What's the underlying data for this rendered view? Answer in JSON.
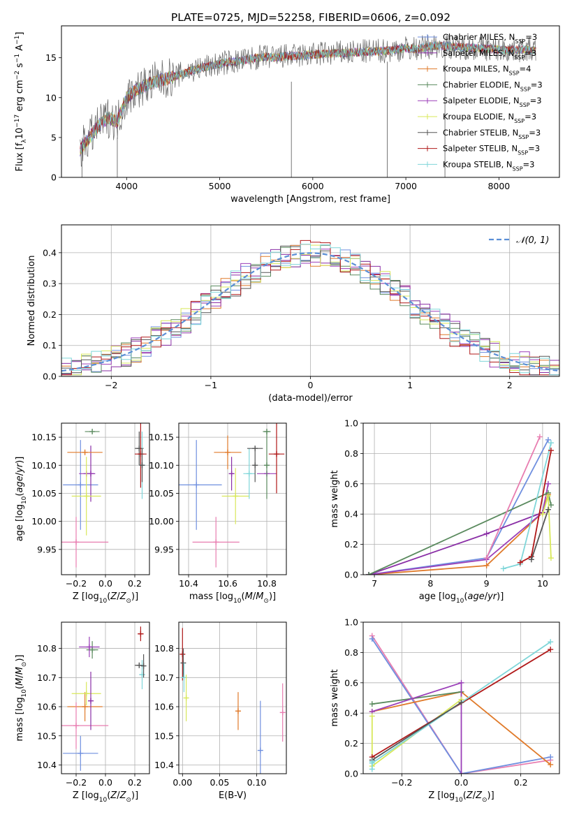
{
  "title": "PLATE=0725, MJD=52258, FIBERID=0606, z=0.092",
  "models": [
    {
      "name": "Chabrier MILES",
      "n": "3",
      "color": "#6f8fdf"
    },
    {
      "name": "Salpeter MILES",
      "n": "3",
      "color": "#8a2fa6"
    },
    {
      "name": "Kroupa MILES",
      "n": "4",
      "color": "#e07a2a"
    },
    {
      "name": "Chabrier ELODIE",
      "n": "3",
      "color": "#5a8a5e"
    },
    {
      "name": "Salpeter ELODIE",
      "n": "3",
      "color": "#9b3fb8"
    },
    {
      "name": "Kroupa ELODIE",
      "n": "3",
      "color": "#d8e85a"
    },
    {
      "name": "Chabrier STELIB",
      "n": "3",
      "color": "#555555"
    },
    {
      "name": "Salpeter STELIB",
      "n": "3",
      "color": "#b01818"
    },
    {
      "name": "Kroupa STELIB",
      "n": "3",
      "color": "#7fd6d9"
    }
  ],
  "chart_data": [
    {
      "id": "spectrum",
      "type": "line",
      "xlabel": "wavelength [Angstrom, rest frame]",
      "ylabel_html": "Flux [f<tspan baseline-shift='sub' font-size='9'>λ</tspan>10<tspan baseline-shift='super' font-size='9'>−17</tspan> erg cm<tspan baseline-shift='super' font-size='9'>−2</tspan> s<tspan baseline-shift='super' font-size='9'>−1</tspan> A<tspan baseline-shift='super' font-size='9'>−1</tspan>]",
      "xlim": [
        3300,
        8650
      ],
      "ylim": [
        0,
        19
      ],
      "xticks": [
        4000,
        5000,
        6000,
        7000,
        8000
      ],
      "yticks": [
        0,
        5,
        10,
        15
      ],
      "grid": false,
      "legend": "right",
      "x": [
        3500,
        3600,
        3700,
        3800,
        3900,
        4000,
        4100,
        4200,
        4300,
        4400,
        4500,
        4600,
        4700,
        4800,
        4900,
        5000,
        5100,
        5200,
        5300,
        5400,
        5500,
        5600,
        5700,
        5800,
        5900,
        6000,
        6100,
        6200,
        6300,
        6400,
        6500,
        6600,
        6700,
        6800,
        6900,
        7000,
        7100,
        7200,
        7300,
        7400,
        7500,
        7600,
        7700,
        7800,
        7900,
        8000,
        8100,
        8200,
        8300,
        8400
      ],
      "y": [
        3.5,
        5.0,
        6.5,
        7.5,
        7.0,
        10.0,
        11.0,
        11.5,
        12.0,
        12.3,
        12.6,
        13.0,
        13.4,
        13.7,
        14.0,
        14.2,
        14.5,
        14.5,
        14.8,
        15.0,
        15.1,
        15.0,
        15.2,
        15.2,
        15.3,
        15.4,
        15.5,
        15.5,
        15.6,
        15.6,
        15.7,
        15.8,
        15.8,
        15.9,
        16.0,
        16.2,
        16.1,
        16.3,
        16.5,
        16.5,
        16.4,
        16.3,
        16.3,
        16.2,
        16.1,
        16.0,
        16.0,
        16.0,
        16.0,
        15.9
      ]
    },
    {
      "id": "residuals",
      "type": "line",
      "xlabel": "(data-model)/error",
      "ylabel": "Normed distribution",
      "xlim": [
        -2.5,
        2.5
      ],
      "ylim": [
        0,
        0.49
      ],
      "xticks": [
        -2,
        -1,
        0,
        1,
        2
      ],
      "yticks": [
        0.0,
        0.1,
        0.2,
        0.3,
        0.4
      ],
      "grid": true,
      "legend": "top-right",
      "legend_label": "𝒩(0, 1)"
    },
    {
      "id": "age_vs_Z",
      "type": "scatter",
      "xlabel_html": "Z [log<tspan baseline-shift='sub' font-size='9'>10</tspan>(<tspan font-style='italic'>Z</tspan>/<tspan font-style='italic'>Z</tspan><tspan baseline-shift='sub' font-size='9'>⊙</tspan>)]",
      "ylabel_html": "age  [log<tspan baseline-shift='sub' font-size='9'>10</tspan>(<tspan font-style='italic'>age</tspan>/<tspan font-style='italic'>yr</tspan>)]",
      "xlim": [
        -0.3,
        0.3
      ],
      "ylim": [
        9.905,
        10.175
      ],
      "xticks": [
        -0.2,
        0.0,
        0.2
      ],
      "yticks": [
        9.95,
        10.0,
        10.05,
        10.1,
        10.15
      ],
      "grid": true,
      "points": [
        {
          "m": 0,
          "x": -0.17,
          "xe": 0.12,
          "y": 10.065,
          "ye": 0.08
        },
        {
          "m": 1,
          "x": -0.1,
          "xe": 0.03,
          "y": 10.085,
          "ye": 0.05
        },
        {
          "m": 2,
          "x": -0.14,
          "xe": 0.12,
          "y": 10.123,
          "ye": 0.0
        },
        {
          "m": 3,
          "x": -0.09,
          "xe": 0.05,
          "y": 10.16,
          "ye": 0.0
        },
        {
          "m": 4,
          "x": -0.13,
          "xe": 0.05,
          "y": 10.085,
          "ye": 0.0
        },
        {
          "m": 5,
          "x": -0.13,
          "xe": 0.1,
          "y": 10.045,
          "ye": 0.07
        },
        {
          "m": 6,
          "x": 0.23,
          "xe": 0.03,
          "y": 10.13,
          "ye": 0.03
        },
        {
          "m": 7,
          "x": 0.24,
          "xe": 0.04,
          "y": 10.12,
          "ye": 0.06
        },
        {
          "m": 8,
          "x": 0.25,
          "xe": 0.02,
          "y": 10.1,
          "ye": 0.06
        },
        {
          "m": 6,
          "x": 0.25,
          "xe": 0.0,
          "y": 10.1,
          "ye": 0.03
        },
        {
          "m": 9,
          "x": -0.2,
          "xe": 0.22,
          "y": 9.963,
          "ye": 0.045
        }
      ]
    },
    {
      "id": "age_vs_mass",
      "type": "scatter",
      "xlabel_html": "mass [log<tspan baseline-shift='sub' font-size='9'>10</tspan>(<tspan font-style='italic'>M</tspan>/<tspan font-style='italic'>M</tspan><tspan baseline-shift='sub' font-size='9'>⊙</tspan>)]",
      "xlim": [
        10.35,
        10.9
      ],
      "ylim": [
        9.905,
        10.175
      ],
      "xticks": [
        10.4,
        10.6,
        10.8
      ],
      "yticks": [
        9.95,
        10.0,
        10.05,
        10.1,
        10.15
      ],
      "grid": true,
      "points": [
        {
          "m": 0,
          "x": 10.44,
          "xe": 0.13,
          "y": 10.065,
          "ye": 0.08
        },
        {
          "m": 2,
          "x": 10.6,
          "xe": 0.07,
          "y": 10.123,
          "ye": 0.03
        },
        {
          "m": 1,
          "x": 10.62,
          "xe": 0.0,
          "y": 10.085,
          "ye": 0.03
        },
        {
          "m": 5,
          "x": 10.64,
          "xe": 0.07,
          "y": 10.045,
          "ye": 0.05
        },
        {
          "m": 8,
          "x": 10.71,
          "xe": 0.03,
          "y": 10.085,
          "ye": 0.045
        },
        {
          "m": 6,
          "x": 10.74,
          "xe": 0.04,
          "y": 10.13,
          "ye": 0.0
        },
        {
          "m": 6,
          "x": 10.74,
          "xe": 0.0,
          "y": 10.1,
          "ye": 0.03
        },
        {
          "m": 3,
          "x": 10.8,
          "xe": 0.02,
          "y": 10.16,
          "ye": 0.0
        },
        {
          "m": 4,
          "x": 10.8,
          "xe": 0.05,
          "y": 10.085,
          "ye": 0.0
        },
        {
          "m": 3,
          "x": 10.8,
          "xe": 0.0,
          "y": 10.1,
          "ye": 0.06
        },
        {
          "m": 7,
          "x": 10.85,
          "xe": 0.04,
          "y": 10.12,
          "ye": 0.07
        },
        {
          "m": 9,
          "x": 10.54,
          "xe": 0.12,
          "y": 9.963,
          "ye": 0.045
        }
      ]
    },
    {
      "id": "weight_vs_age",
      "type": "line",
      "xlabel_html": "age  [log<tspan baseline-shift='sub' font-size='9'>10</tspan>(<tspan font-style='italic'>age</tspan>/<tspan font-style='italic'>yr</tspan>)]",
      "ylabel": "mass weight",
      "xlim": [
        6.8,
        10.3
      ],
      "ylim": [
        0,
        1
      ],
      "xticks": [
        7,
        8,
        9,
        10
      ],
      "yticks": [
        0.0,
        0.2,
        0.4,
        0.6,
        0.8,
        1.0
      ],
      "grid": true,
      "series": [
        {
          "m": 0,
          "x": [
            6.9,
            9.0,
            10.1
          ],
          "y": [
            0.0,
            0.11,
            0.89
          ]
        },
        {
          "m": 2,
          "x": [
            6.9,
            9.0,
            10.0,
            10.1
          ],
          "y": [
            0.0,
            0.06,
            0.41,
            0.53
          ]
        },
        {
          "m": 4,
          "x": [
            6.9,
            9.0,
            10.0,
            10.1
          ],
          "y": [
            0.0,
            0.1,
            0.41,
            0.6
          ]
        },
        {
          "m": 1,
          "x": [
            6.9,
            9.0,
            10.0
          ],
          "y": [
            0.0,
            0.27,
            0.41
          ]
        },
        {
          "m": 3,
          "x": [
            6.9,
            10.1,
            10.15
          ],
          "y": [
            0.0,
            0.54,
            0.46
          ]
        },
        {
          "m": 9,
          "x": [
            9.0,
            9.95
          ],
          "y": [
            0.11,
            0.91
          ]
        },
        {
          "m": 8,
          "x": [
            9.3,
            9.6,
            10.15
          ],
          "y": [
            0.04,
            0.07,
            0.87
          ]
        },
        {
          "m": 7,
          "x": [
            9.6,
            9.8,
            10.15
          ],
          "y": [
            0.08,
            0.12,
            0.82
          ]
        },
        {
          "m": 5,
          "x": [
            10.0,
            10.1,
            10.15
          ],
          "y": [
            0.4,
            0.52,
            0.11
          ]
        },
        {
          "m": 6,
          "x": [
            9.8,
            10.1
          ],
          "y": [
            0.1,
            0.43
          ]
        }
      ]
    },
    {
      "id": "mass_vs_Z",
      "type": "scatter",
      "xlabel_html": "Z [log<tspan baseline-shift='sub' font-size='9'>10</tspan>(<tspan font-style='italic'>Z</tspan>/<tspan font-style='italic'>Z</tspan><tspan baseline-shift='sub' font-size='9'>⊙</tspan>)]",
      "ylabel_html": "mass [log<tspan baseline-shift='sub' font-size='9'>10</tspan>(<tspan font-style='italic'>M</tspan>/<tspan font-style='italic'>M</tspan><tspan baseline-shift='sub' font-size='9'>⊙</tspan>)]",
      "xlim": [
        -0.3,
        0.3
      ],
      "ylim": [
        10.37,
        10.89
      ],
      "xticks": [
        -0.2,
        0.0,
        0.2
      ],
      "yticks": [
        10.4,
        10.5,
        10.6,
        10.7,
        10.8
      ],
      "grid": true,
      "points": [
        {
          "m": 0,
          "x": -0.17,
          "xe": 0.12,
          "y": 10.44,
          "ye": 0.06
        },
        {
          "m": 2,
          "x": -0.14,
          "xe": 0.12,
          "y": 10.6,
          "ye": 0.05
        },
        {
          "m": 9,
          "x": -0.2,
          "xe": 0.22,
          "y": 10.535,
          "ye": 0.08
        },
        {
          "m": 5,
          "x": -0.13,
          "xe": 0.1,
          "y": 10.645,
          "ye": 0.04
        },
        {
          "m": 1,
          "x": -0.1,
          "xe": 0.0,
          "y": 10.62,
          "ye": 0.1
        },
        {
          "m": 3,
          "x": -0.09,
          "xe": 0.04,
          "y": 10.795,
          "ye": 0.03
        },
        {
          "m": 4,
          "x": -0.11,
          "xe": 0.07,
          "y": 10.805,
          "ye": 0.035
        },
        {
          "m": 7,
          "x": 0.24,
          "xe": 0.02,
          "y": 10.85,
          "ye": 0.025
        },
        {
          "m": 6,
          "x": 0.23,
          "xe": 0.03,
          "y": 10.742,
          "ye": 0.0
        },
        {
          "m": 8,
          "x": 0.25,
          "xe": 0.02,
          "y": 10.71,
          "ye": 0.05
        },
        {
          "m": 6,
          "x": 0.26,
          "xe": 0.0,
          "y": 10.74,
          "ye": 0.04
        }
      ]
    },
    {
      "id": "mass_vs_ebv",
      "type": "scatter",
      "xlabel": "E(B-V)",
      "xlim": [
        -0.005,
        0.14
      ],
      "ylim": [
        10.37,
        10.89
      ],
      "xticks": [
        0.0,
        0.05,
        0.1
      ],
      "xticklabels": [
        "0.00",
        "0.05",
        "0.10"
      ],
      "yticks": [
        10.4,
        10.5,
        10.6,
        10.7,
        10.8
      ],
      "grid": true,
      "points": [
        {
          "m": 7,
          "x": 0.0,
          "xe": 0.0,
          "y": 10.78,
          "ye": 0.09
        },
        {
          "m": 6,
          "x": 0.001,
          "xe": 0.0,
          "y": 10.75,
          "ye": 0.05
        },
        {
          "m": 8,
          "x": 0.002,
          "xe": 0.0,
          "y": 10.7,
          "ye": 0.05
        },
        {
          "m": 5,
          "x": 0.005,
          "xe": 0.0,
          "y": 10.63,
          "ye": 0.08
        },
        {
          "m": 2,
          "x": 0.075,
          "xe": 0.0,
          "y": 10.585,
          "ye": 0.065
        },
        {
          "m": 0,
          "x": 0.105,
          "xe": 0.0,
          "y": 10.45,
          "ye": 0.17
        },
        {
          "m": 9,
          "x": 0.135,
          "xe": 0.0,
          "y": 10.58,
          "ye": 0.1
        }
      ]
    },
    {
      "id": "weight_vs_Z",
      "type": "line",
      "xlabel_html": "Z [log<tspan baseline-shift='sub' font-size='9'>10</tspan>(<tspan font-style='italic'>Z</tspan>/<tspan font-style='italic'>Z</tspan><tspan baseline-shift='sub' font-size='9'>⊙</tspan>)]",
      "ylabel": "mass weight",
      "xlim": [
        -0.33,
        0.33
      ],
      "ylim": [
        0,
        1
      ],
      "xticks": [
        -0.2,
        0.0,
        0.2
      ],
      "yticks": [
        0.0,
        0.2,
        0.4,
        0.6,
        0.8,
        1.0
      ],
      "grid": true,
      "series": [
        {
          "m": 9,
          "x": [
            -0.3,
            0.0,
            0.3
          ],
          "y": [
            0.91,
            0.0,
            0.09
          ]
        },
        {
          "m": 0,
          "x": [
            -0.3,
            0.0,
            0.3
          ],
          "y": [
            0.89,
            0.0,
            0.11
          ]
        },
        {
          "m": 2,
          "x": [
            -0.3,
            0.0,
            0.3
          ],
          "y": [
            0.41,
            0.54,
            0.06
          ]
        },
        {
          "m": 3,
          "x": [
            -0.3,
            0.0
          ],
          "y": [
            0.46,
            0.54
          ]
        },
        {
          "m": 4,
          "x": [
            -0.3,
            0.0,
            0.0
          ],
          "y": [
            0.41,
            0.6,
            0.0
          ]
        },
        {
          "m": 5,
          "x": [
            -0.3,
            -0.3,
            0.0
          ],
          "y": [
            0.38,
            0.05,
            0.49
          ]
        },
        {
          "m": 7,
          "x": [
            -0.3,
            0.3
          ],
          "y": [
            0.11,
            0.82
          ]
        },
        {
          "m": 8,
          "x": [
            -0.3,
            0.3
          ],
          "y": [
            0.07,
            0.87
          ]
        },
        {
          "m": 6,
          "x": [
            -0.3,
            0.0
          ],
          "y": [
            0.09,
            0.47
          ]
        },
        {
          "m": 8,
          "x": [
            -0.3,
            -0.3
          ],
          "y": [
            0.03,
            0.08
          ]
        }
      ]
    }
  ],
  "extra_colors": [
    "#e87db0"
  ]
}
